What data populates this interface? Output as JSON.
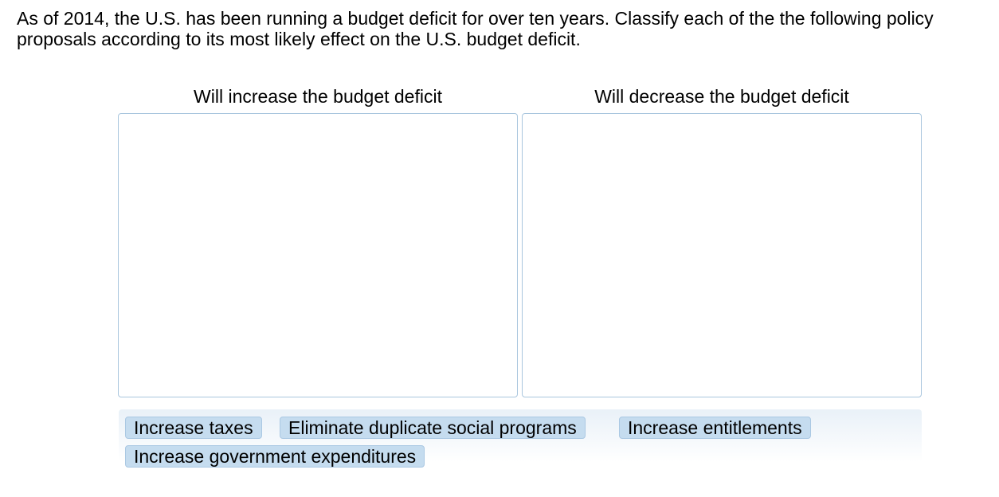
{
  "question": {
    "text": "As of 2014, the U.S. has been running a budget deficit for over ten years. Classify each of the the following policy proposals according to its most likely effect on the U.S. budget deficit."
  },
  "categories": [
    {
      "label": "Will increase the budget deficit"
    },
    {
      "label": "Will decrease the budget deficit"
    }
  ],
  "tiles": [
    {
      "label": "Increase taxes"
    },
    {
      "label": "Eliminate duplicate social programs"
    },
    {
      "label": "Increase entitlements"
    },
    {
      "label": "Increase government expenditures"
    }
  ],
  "colors": {
    "tile_bg": "#c5dcef",
    "tile_border": "#aac8e3",
    "zone_border": "#a9c6de",
    "tray_bg": "#e9f1f8"
  }
}
